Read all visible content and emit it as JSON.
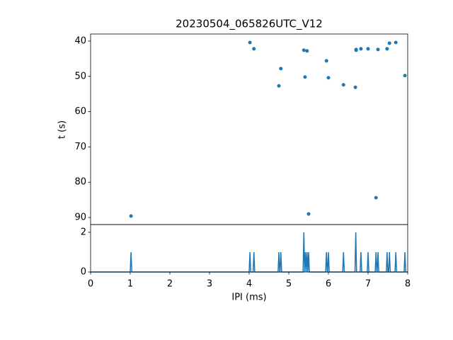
{
  "chart_data": [
    {
      "type": "scatter",
      "title": "20230504_065826UTC_V12",
      "ylabel": "t (s)",
      "color": "#1f77b4",
      "x": [
        4.02,
        4.12,
        4.75,
        4.8,
        5.38,
        5.46,
        5.41,
        5.95,
        6.0,
        6.38,
        6.68,
        6.7,
        6.7,
        6.82,
        7.0,
        7.25,
        7.2,
        7.48,
        7.54,
        7.7,
        7.93,
        1.02,
        5.5
      ],
      "values": [
        40.4,
        42.2,
        52.7,
        47.8,
        42.6,
        42.8,
        50.2,
        45.6,
        50.4,
        52.4,
        53.1,
        42.4,
        42.6,
        42.2,
        42.2,
        42.4,
        84.4,
        42.2,
        40.6,
        40.4,
        49.8,
        89.6,
        89.0
      ],
      "xlim": [
        0,
        8
      ],
      "ylim": [
        92,
        38
      ],
      "yticks": [
        40,
        50,
        60,
        70,
        80,
        90
      ]
    },
    {
      "type": "line",
      "xlabel": "IPI (ms)",
      "color": "#1f77b4",
      "x": [
        0,
        1.0,
        1.02,
        1.04,
        4.0,
        4.02,
        4.04,
        4.1,
        4.12,
        4.14,
        4.73,
        4.75,
        4.77,
        4.78,
        4.8,
        4.82,
        5.36,
        5.38,
        5.4,
        5.4,
        5.42,
        5.44,
        5.44,
        5.46,
        5.48,
        5.48,
        5.5,
        5.52,
        5.93,
        5.95,
        5.97,
        5.98,
        6.0,
        6.02,
        6.36,
        6.38,
        6.4,
        6.67,
        6.69,
        6.71,
        6.8,
        6.82,
        6.84,
        6.98,
        7.0,
        7.02,
        7.18,
        7.2,
        7.22,
        7.23,
        7.25,
        7.27,
        7.46,
        7.48,
        7.5,
        7.52,
        7.54,
        7.56,
        7.68,
        7.7,
        7.72,
        7.91,
        7.93,
        7.95,
        8
      ],
      "values": [
        0,
        0,
        1,
        0,
        0,
        1,
        0,
        0,
        1,
        0,
        0,
        1,
        0,
        0,
        1,
        0,
        0,
        2,
        0,
        0,
        1,
        0,
        0,
        1,
        0,
        0,
        1,
        0,
        0,
        1,
        0,
        0,
        1,
        0,
        0,
        1,
        0,
        0,
        2,
        0,
        0,
        1,
        0,
        0,
        1,
        0,
        0,
        1,
        0,
        0,
        1,
        0,
        0,
        1,
        0,
        0,
        1,
        0,
        0,
        1,
        0,
        0,
        1,
        0,
        0
      ],
      "xlim": [
        0,
        8
      ],
      "ylim": [
        0,
        2.39
      ],
      "xticks": [
        0,
        1,
        2,
        3,
        4,
        5,
        6,
        7,
        8
      ],
      "yticks": [
        0,
        2
      ]
    }
  ]
}
